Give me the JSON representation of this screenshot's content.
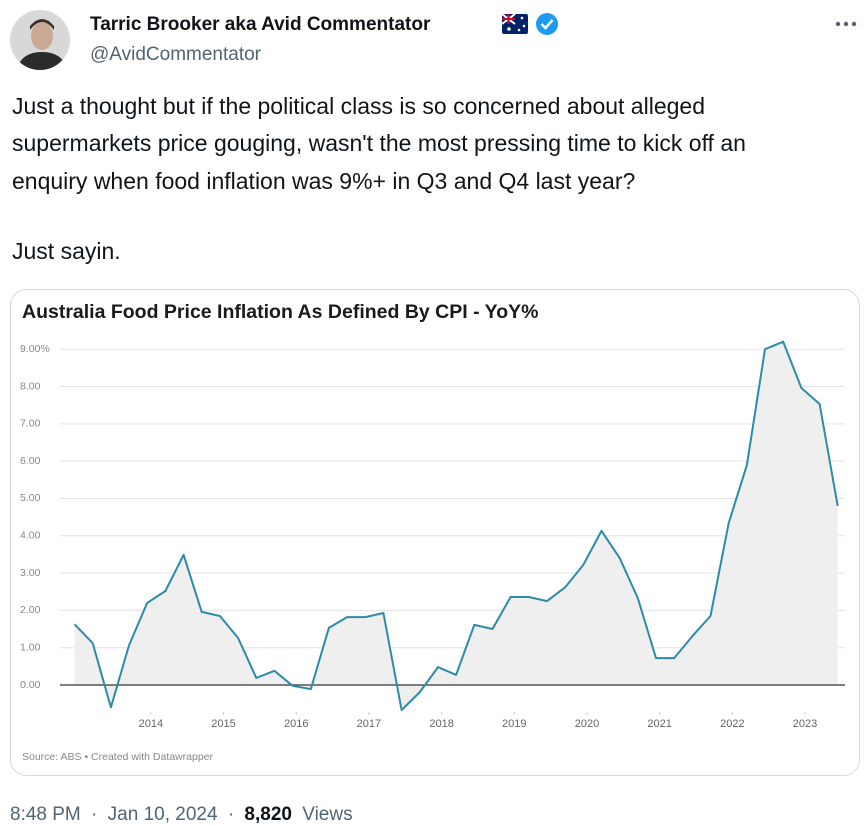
{
  "tweet": {
    "author_name": "Tarric Brooker aka Avid Commentator",
    "handle": "@AvidCommentator",
    "text_lines": [
      "Just a thought but if the political class is so concerned about alleged",
      "supermarkets price gouging, wasn't the most pressing time to kick off an",
      "enquiry when food inflation was 9%+ in Q3 and Q4 last year?",
      "Just sayin."
    ],
    "time": "8:48 PM",
    "separator": "·",
    "date": "Jan 10, 2024",
    "views_count": "8,820",
    "views_label": "Views"
  },
  "chart_data": {
    "type": "line",
    "title": "Australia Food Price Inflation As Defined By CPI - YoY%",
    "source": "Source: ABS • Created with Datawrapper",
    "x": [
      2013.2,
      2013.45,
      2013.7,
      2013.95,
      2014.2,
      2014.45,
      2014.7,
      2014.95,
      2015.2,
      2015.45,
      2015.7,
      2015.95,
      2016.2,
      2016.45,
      2016.7,
      2016.95,
      2017.2,
      2017.45,
      2017.7,
      2017.95,
      2018.2,
      2018.45,
      2018.7,
      2018.95,
      2019.2,
      2019.45,
      2019.7,
      2019.95,
      2020.2,
      2020.45,
      2020.7,
      2020.95,
      2021.2,
      2021.45,
      2021.7,
      2021.95,
      2022.2,
      2022.45,
      2022.7,
      2022.95,
      2023.2,
      2023.45,
      2023.7
    ],
    "series": [
      {
        "name": "Food price inflation",
        "color": "#2e8aa6",
        "values": [
          1.63,
          1.12,
          -0.6,
          1.07,
          2.2,
          2.52,
          3.49,
          1.96,
          1.85,
          1.26,
          0.19,
          0.38,
          -0.02,
          -0.11,
          1.53,
          1.82,
          1.82,
          1.93,
          -0.67,
          -0.19,
          0.48,
          0.27,
          1.61,
          1.5,
          2.36,
          2.36,
          2.25,
          2.62,
          3.22,
          4.13,
          3.4,
          2.33,
          0.72,
          0.72,
          1.31,
          1.85,
          4.34,
          5.9,
          9.0,
          9.2,
          7.96,
          7.53,
          4.8
        ]
      }
    ],
    "xlim": [
      2013,
      2023.8
    ],
    "xticks": [
      {
        "value": 2014.25,
        "label": "2014"
      },
      {
        "value": 2015.25,
        "label": "2015"
      },
      {
        "value": 2016.25,
        "label": "2016"
      },
      {
        "value": 2017.25,
        "label": "2017"
      },
      {
        "value": 2018.25,
        "label": "2018"
      },
      {
        "value": 2019.25,
        "label": "2019"
      },
      {
        "value": 2020.25,
        "label": "2020"
      },
      {
        "value": 2021.25,
        "label": "2021"
      },
      {
        "value": 2022.25,
        "label": "2022"
      },
      {
        "value": 2023.25,
        "label": "2023"
      }
    ],
    "ylim": [
      -0.75,
      9.3
    ],
    "yticks": [
      {
        "value": 0,
        "label": "0.00"
      },
      {
        "value": 1,
        "label": "1.00"
      },
      {
        "value": 2,
        "label": "2.00"
      },
      {
        "value": 3,
        "label": "3.00"
      },
      {
        "value": 4,
        "label": "4.00"
      },
      {
        "value": 5,
        "label": "5.00"
      },
      {
        "value": 6,
        "label": "6.00"
      },
      {
        "value": 7,
        "label": "7.00"
      },
      {
        "value": 8,
        "label": "8.00"
      },
      {
        "value": 9,
        "label": "9.00%"
      }
    ],
    "grid": true
  }
}
